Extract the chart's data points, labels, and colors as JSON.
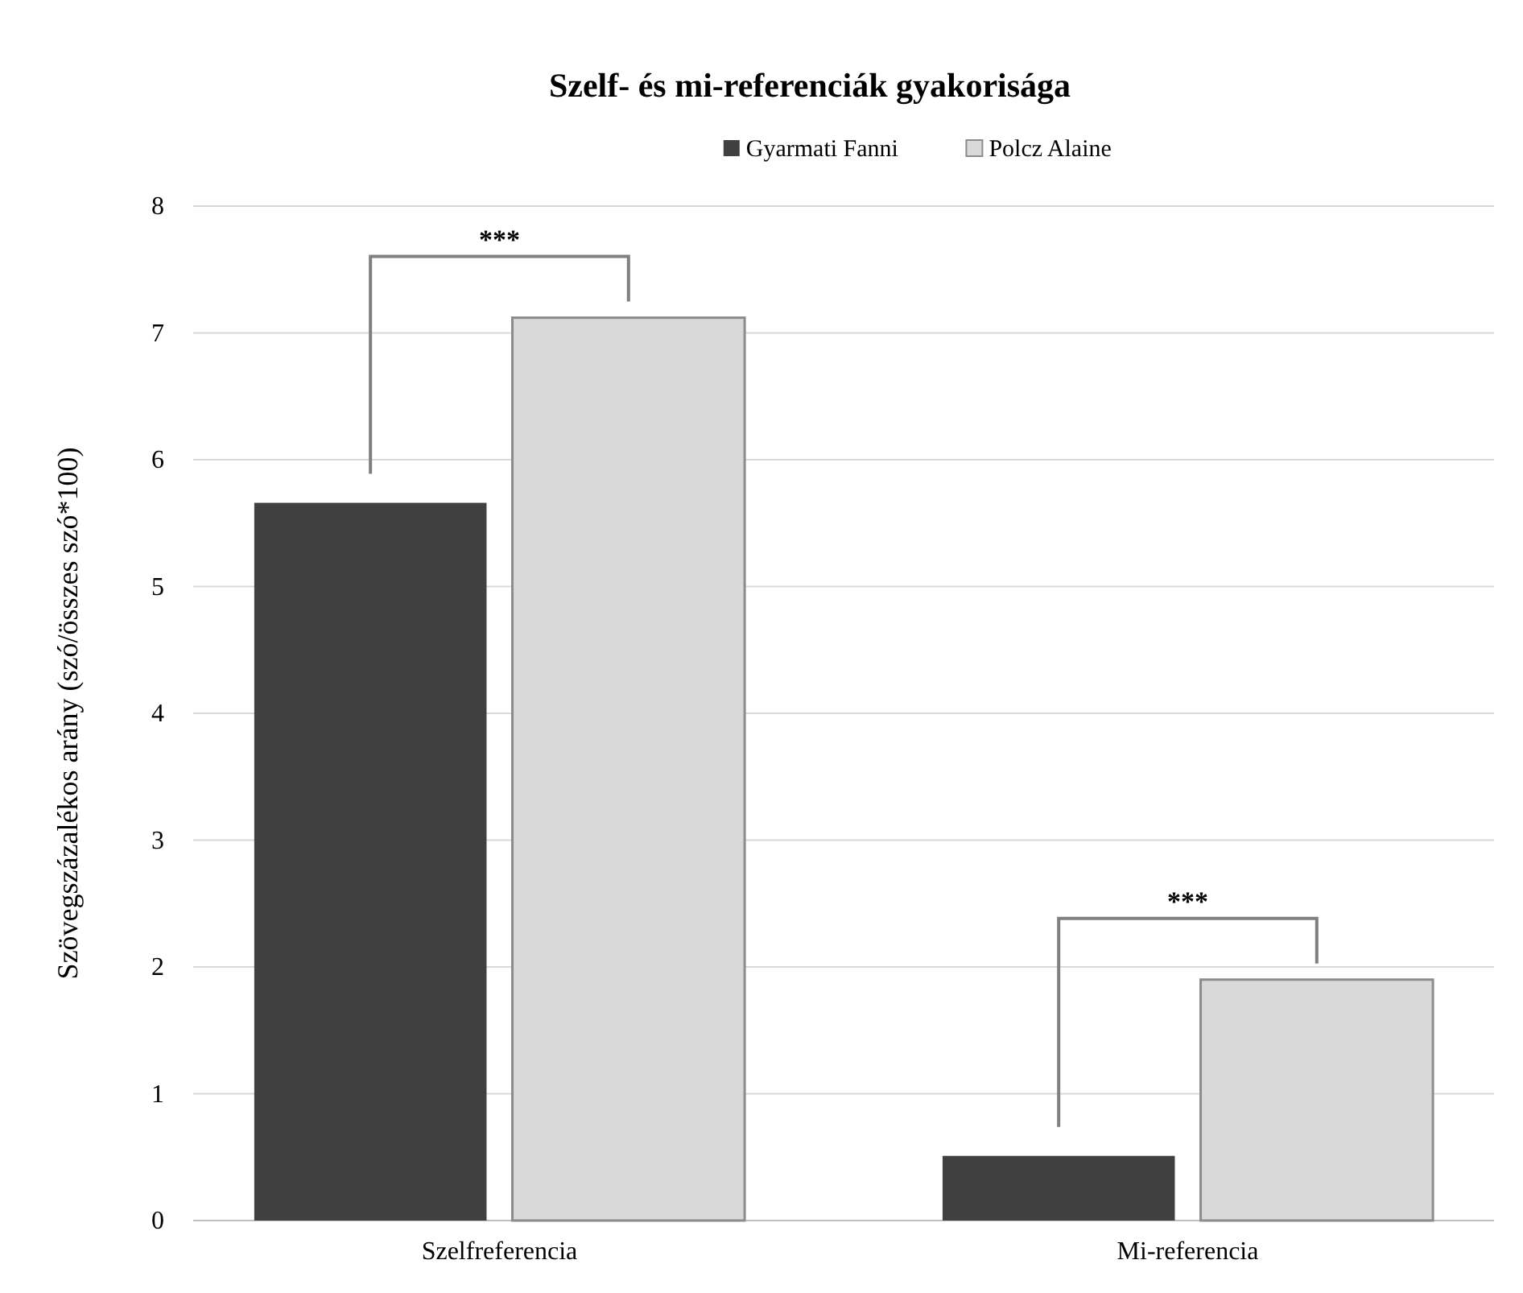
{
  "chart_data": {
    "type": "bar",
    "title": "Szelf- és mi-referenciák gyakorisága",
    "ylabel": "Szövegszázalékos arány (szó/összes szó*100)",
    "categories": [
      "Szelfreferencia",
      "Mi-referencia"
    ],
    "series": [
      {
        "name": "Gyarmati Fanni",
        "color": "#404040",
        "values": [
          5.66,
          0.51
        ]
      },
      {
        "name": "Polcz Alaine",
        "color": "#d9d9d9",
        "values": [
          7.12,
          1.9
        ]
      }
    ],
    "ylim": [
      0,
      8
    ],
    "yticks": [
      0,
      1,
      2,
      3,
      4,
      5,
      6,
      7,
      8
    ],
    "grid": "y",
    "legend": "top",
    "annotations": [
      "***",
      "***"
    ]
  }
}
